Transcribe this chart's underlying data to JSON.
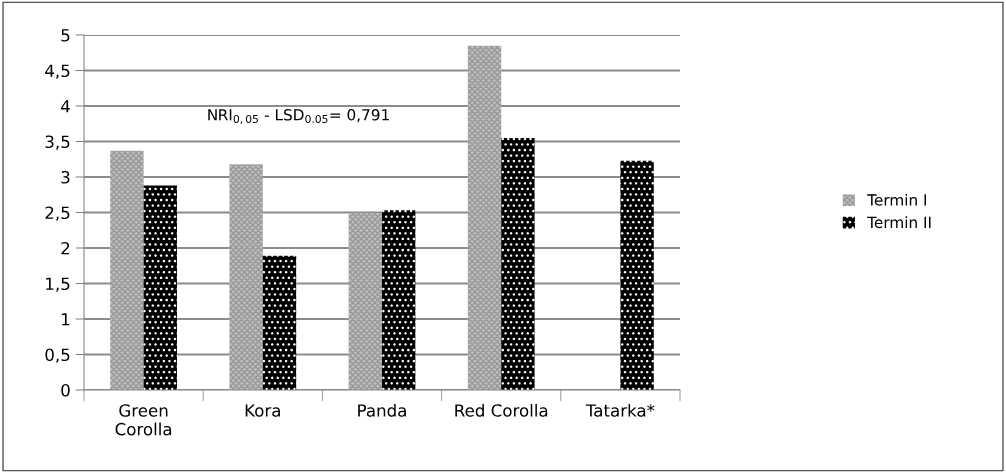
{
  "chart_data": {
    "type": "bar",
    "categories": [
      "Green\nCorolla",
      "Kora",
      "Panda",
      "Red Corolla",
      "Tatarka*"
    ],
    "series": [
      {
        "name": "Termin I",
        "color": "#bdbdbd",
        "values": [
          3.37,
          3.18,
          2.49,
          4.85,
          null
        ]
      },
      {
        "name": "Termin II",
        "color": "#000000",
        "values": [
          2.88,
          1.89,
          2.53,
          3.55,
          3.23
        ]
      }
    ],
    "ylim": [
      0,
      5
    ],
    "yticks": [
      0,
      {
        "value": 0.5,
        "label": "0,5"
      },
      1,
      {
        "value": 1.5,
        "label": "1,5"
      },
      2,
      {
        "value": 2.5,
        "label": "2,5"
      },
      3,
      {
        "value": 3.5,
        "label": "3,5"
      },
      4,
      {
        "value": 4.5,
        "label": "4,5"
      },
      5
    ],
    "grid": "y",
    "legend": "right",
    "annotations": [
      "NRI$_{0,05}$ - LSD$_{0.05}$= 0,791"
    ]
  }
}
